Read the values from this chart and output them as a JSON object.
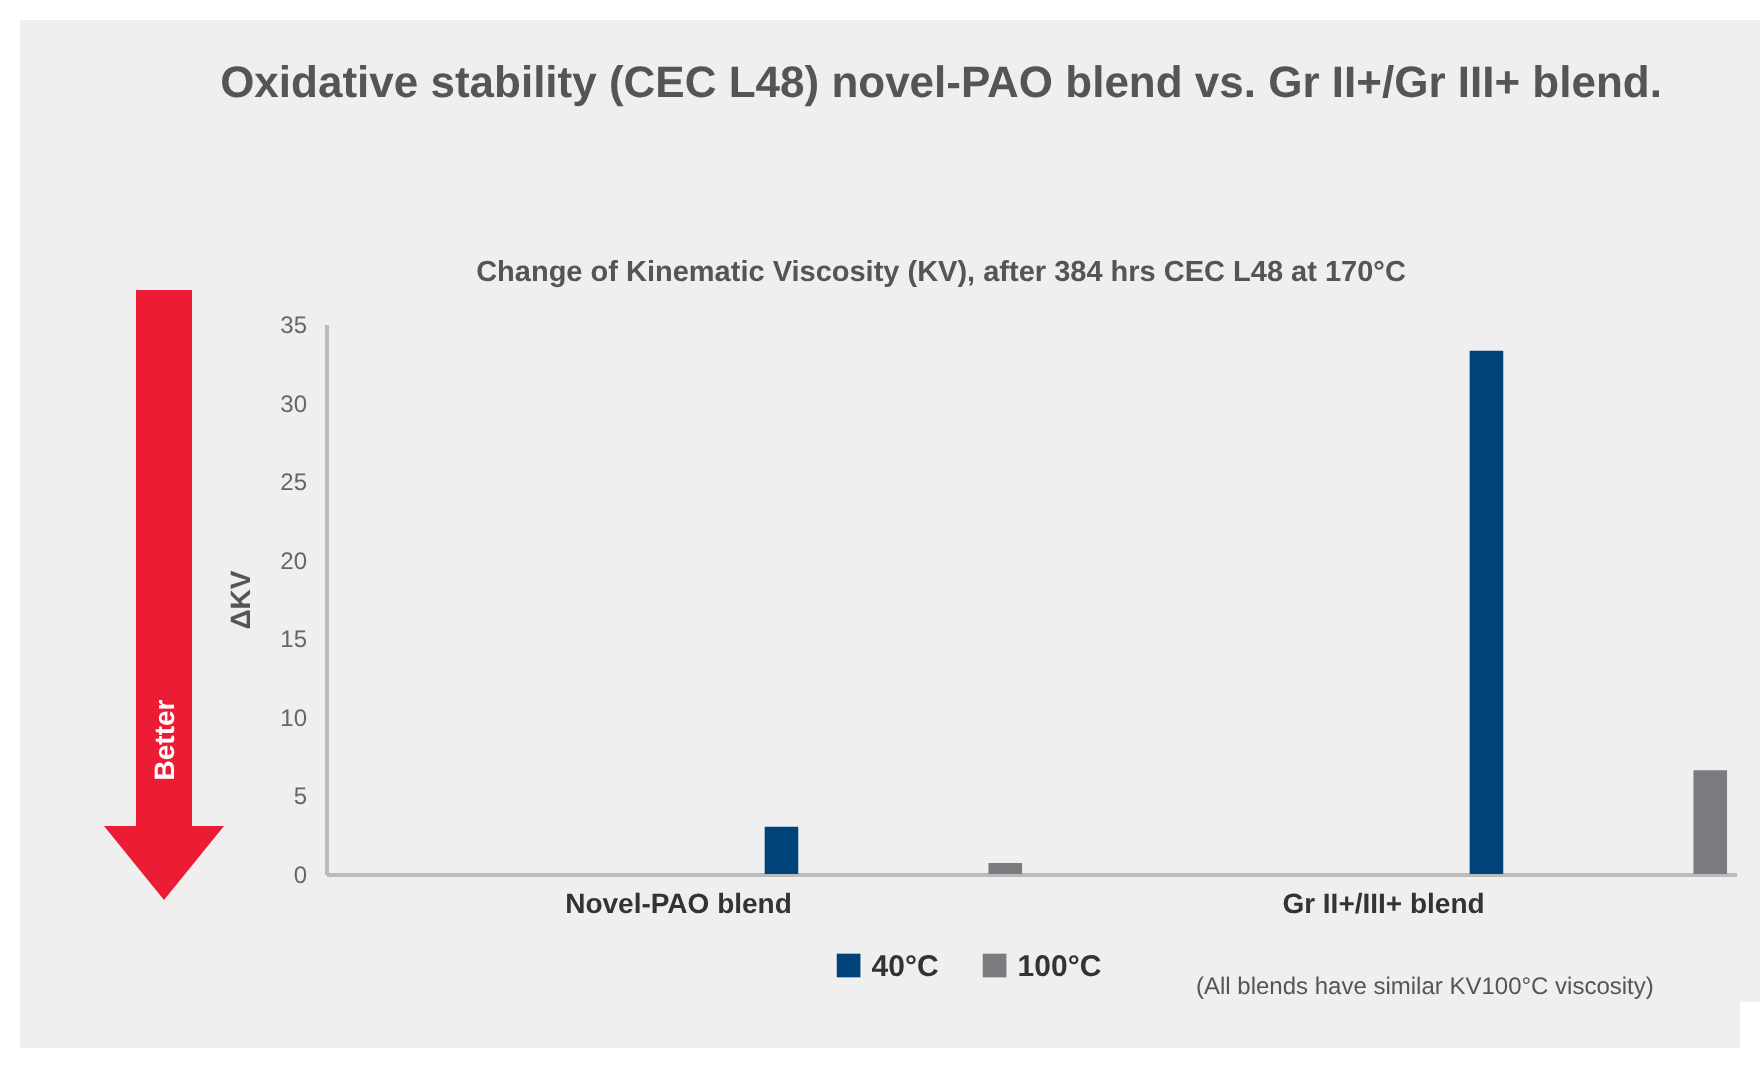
{
  "chart_data": {
    "type": "bar",
    "title": "Oxidative stability (CEC L48) novel-PAO blend vs. Gr II+/Gr III+ blend.",
    "subtitle": "Change of Kinematic Viscosity (KV), after 384 hrs CEC L48 at 170°C",
    "ylabel": "ΔKV",
    "categories": [
      "Novel-PAO blend",
      "Gr II+/III+ blend"
    ],
    "series": [
      {
        "name": "40°C",
        "color": "#00427a",
        "values": [
          3.0,
          33.3
        ]
      },
      {
        "name": "100°C",
        "color": "#7a7b7e",
        "values": [
          0.7,
          6.6
        ]
      }
    ],
    "ylim": [
      0,
      35
    ],
    "yticks": [
      0,
      5,
      10,
      15,
      20,
      25,
      30,
      35
    ],
    "grid": false,
    "legend": "bottom",
    "annotations": [
      "Better",
      "(All blends have similar KV100°C viscosity)"
    ]
  }
}
